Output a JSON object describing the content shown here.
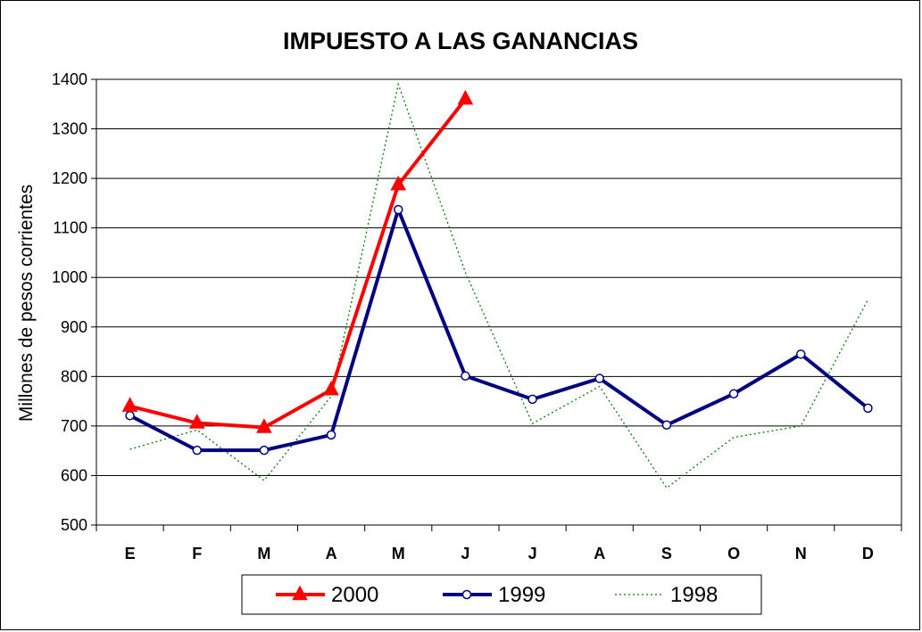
{
  "chart_data": {
    "type": "line",
    "title": "IMPUESTO A LAS GANANCIAS",
    "ylabel": "Millones de pesos corrientes",
    "xlabel": "",
    "ylim": [
      500,
      1400
    ],
    "yticks": [
      500,
      600,
      700,
      800,
      900,
      1000,
      1100,
      1200,
      1300,
      1400
    ],
    "categories": [
      "E",
      "F",
      "M",
      "A",
      "M",
      "J",
      "J",
      "A",
      "S",
      "O",
      "N",
      "D"
    ],
    "grid": "horizontal",
    "legend_position": "bottom",
    "series": [
      {
        "name": "2000",
        "color": "#ff0000",
        "marker": "triangle",
        "style": "solid-thick",
        "values": [
          740,
          706,
          697,
          773,
          1187,
          1360,
          null,
          null,
          null,
          null,
          null,
          null
        ]
      },
      {
        "name": "1999",
        "color": "#000080",
        "marker": "circle",
        "style": "solid-thick",
        "values": [
          721,
          651,
          651,
          682,
          1137,
          801,
          754,
          796,
          702,
          765,
          845,
          736
        ]
      },
      {
        "name": "1998",
        "color": "#008000",
        "marker": "none",
        "style": "dotted",
        "values": [
          653,
          692,
          590,
          760,
          1390,
          1010,
          705,
          780,
          575,
          677,
          700,
          955
        ]
      }
    ]
  }
}
